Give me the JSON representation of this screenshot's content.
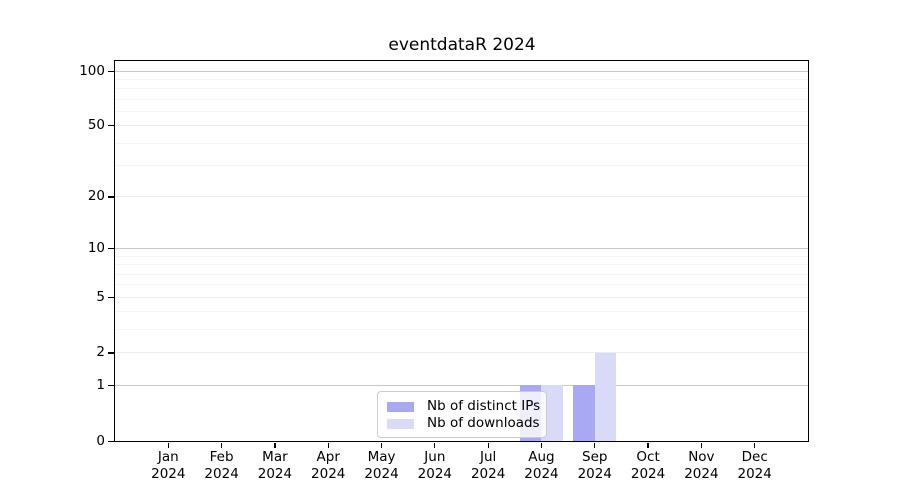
{
  "title": "eventdataR 2024",
  "legend": {
    "items": [
      {
        "label": "Nb of distinct IPs",
        "color": "#a9a9f3"
      },
      {
        "label": "Nb of downloads",
        "color": "#d9d9f8"
      }
    ]
  },
  "chart_data": {
    "type": "bar",
    "title": "eventdataR 2024",
    "categories": [
      "Jan",
      "Feb",
      "Mar",
      "Apr",
      "May",
      "Jun",
      "Jul",
      "Aug",
      "Sep",
      "Oct",
      "Nov",
      "Dec"
    ],
    "x_year": "2024",
    "series": [
      {
        "name": "Nb of distinct IPs",
        "color": "#a9a9f3",
        "values": [
          0,
          0,
          0,
          0,
          0,
          0,
          0,
          1,
          1,
          0,
          0,
          0
        ]
      },
      {
        "name": "Nb of downloads",
        "color": "#d9d9f8",
        "values": [
          0,
          0,
          0,
          0,
          0,
          0,
          0,
          1,
          2,
          0,
          0,
          0
        ]
      }
    ],
    "ylim": [
      0,
      100
    ],
    "yscale": "log10(1+x)",
    "yticks": [
      0,
      1,
      2,
      5,
      10,
      20,
      50,
      100
    ],
    "strong_gridlines": [
      1,
      10,
      100
    ],
    "minor_gridlines": [
      3,
      4,
      6,
      7,
      8,
      9,
      30,
      40,
      60,
      70,
      80,
      90
    ],
    "grid": "horizontal",
    "legend_position": "lower center",
    "colors": {
      "spine": "#000000",
      "grid_strong": "#c8c8c8",
      "grid_major": "#ececec",
      "grid_minor": "#f3f3f3"
    }
  }
}
